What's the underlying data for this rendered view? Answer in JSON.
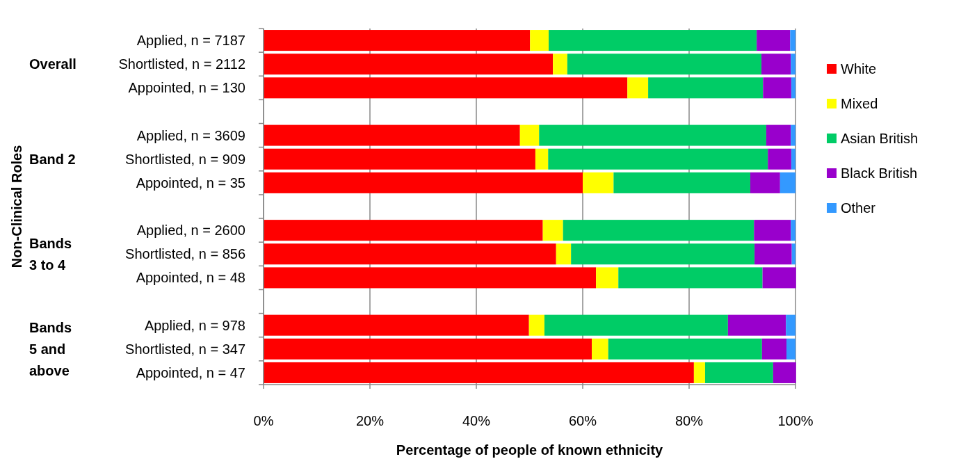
{
  "chart_data": {
    "type": "bar",
    "orientation": "horizontal",
    "stacked": true,
    "xlabel": "Percentage of people of known ethnicity",
    "categories": [
      "Applied, n = 7187",
      "Shortlisted, n = 2112",
      "Appointed, n = 130",
      null,
      "Applied, n = 3609",
      "Shortlisted, n = 909",
      "Appointed, n = 35",
      null,
      "Applied, n = 2600",
      "Shortlisted, n = 856",
      "Appointed, n = 48",
      null,
      "Applied, n = 978",
      "Shortlisted, n = 347",
      "Appointed, n = 47"
    ],
    "series": [
      {
        "name": "White",
        "color": "#ff0000",
        "values": [
          50.1,
          54.4,
          68.4,
          null,
          48.2,
          51.1,
          60.0,
          null,
          52.5,
          55.0,
          62.5,
          null,
          49.9,
          61.7,
          80.9
        ]
      },
      {
        "name": "Mixed",
        "color": "#ffff00",
        "values": [
          3.5,
          2.7,
          3.9,
          null,
          3.6,
          2.4,
          5.8,
          null,
          3.8,
          2.8,
          4.2,
          null,
          2.9,
          3.1,
          2.1
        ]
      },
      {
        "name": "Asian British",
        "color": "#00cc66",
        "values": [
          39.1,
          36.5,
          21.6,
          null,
          42.7,
          41.3,
          25.7,
          null,
          35.9,
          34.5,
          27.1,
          null,
          34.5,
          28.9,
          12.8
        ]
      },
      {
        "name": "Black British",
        "color": "#9900cc",
        "values": [
          6.3,
          5.5,
          5.3,
          null,
          4.6,
          4.4,
          5.6,
          null,
          6.9,
          7.0,
          6.3,
          null,
          10.9,
          4.6,
          4.3
        ]
      },
      {
        "name": "Other",
        "color": "#3399ff",
        "values": [
          1.0,
          0.9,
          0.8,
          null,
          0.9,
          0.8,
          2.9,
          null,
          0.9,
          0.7,
          0,
          null,
          1.8,
          1.7,
          0
        ]
      }
    ],
    "xlim": [
      0,
      100
    ],
    "xticks": [
      {
        "value": 0,
        "label": "0%"
      },
      {
        "value": 20,
        "label": "20%"
      },
      {
        "value": 40,
        "label": "40%"
      },
      {
        "value": 60,
        "label": "60%"
      },
      {
        "value": 80,
        "label": "80%"
      },
      {
        "value": 100,
        "label": "100%"
      }
    ],
    "grid": "x",
    "legend": "right",
    "annotations": [
      "Overall",
      "Band 2",
      "Bands 3 to 4",
      "Bands 5 and above",
      "Non-Clinical Roles"
    ]
  }
}
